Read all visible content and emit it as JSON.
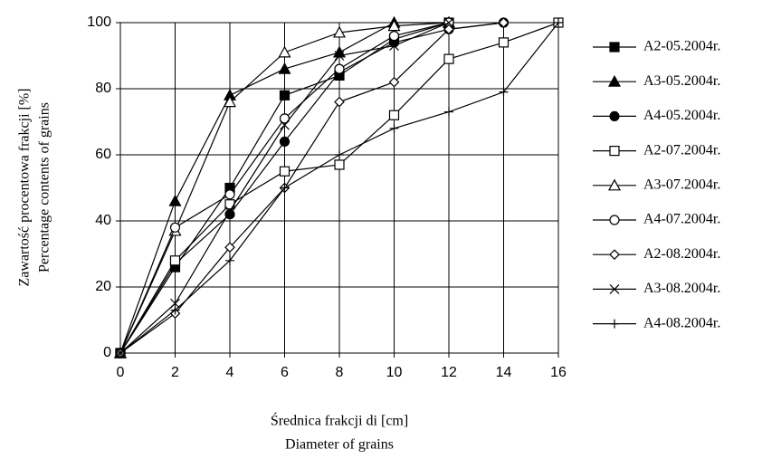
{
  "chart_data": {
    "type": "line",
    "ylabel": [
      "Zawartość procentowa frakcji [%]",
      "Percentage contents of grains"
    ],
    "xlabel": [
      "Średnica frakcji di [cm]",
      "Diameter of grains"
    ],
    "x": [
      0,
      2,
      4,
      6,
      8,
      10,
      12,
      14,
      16
    ],
    "xlim": [
      0,
      16
    ],
    "xticks": [
      0,
      2,
      4,
      6,
      8,
      10,
      12,
      14,
      16
    ],
    "ylim": [
      0,
      100
    ],
    "yticks": [
      0,
      20,
      40,
      60,
      80,
      100
    ],
    "grid": true,
    "legend": "right",
    "series": [
      {
        "name": "A2-05.2004r.",
        "color": "#000000",
        "marker": "square-filled",
        "values": [
          0,
          26,
          50,
          78,
          84,
          95,
          100,
          null,
          null
        ]
      },
      {
        "name": "A3-05.2004r.",
        "color": "#000000",
        "marker": "triangle-filled",
        "values": [
          0,
          46,
          78,
          86,
          91,
          100,
          100,
          null,
          null
        ]
      },
      {
        "name": "A4-05.2004r.",
        "color": "#000000",
        "marker": "circle-filled",
        "values": [
          0,
          27,
          42,
          64,
          85,
          94,
          98,
          100,
          null
        ]
      },
      {
        "name": "A2-07.2004r.",
        "color": "#000000",
        "marker": "square-open",
        "values": [
          0,
          28,
          45,
          55,
          57,
          72,
          89,
          94,
          100
        ]
      },
      {
        "name": "A3-07.2004r.",
        "color": "#000000",
        "marker": "triangle-open",
        "values": [
          0,
          37,
          76,
          91,
          97,
          99,
          100,
          null,
          null
        ]
      },
      {
        "name": "A4-07.2004r.",
        "color": "#000000",
        "marker": "circle-open",
        "values": [
          0,
          38,
          48,
          71,
          86,
          96,
          100,
          null,
          null
        ]
      },
      {
        "name": "A2-08.2004r.",
        "color": "#000000",
        "marker": "diamond-open",
        "values": [
          0,
          12,
          32,
          50,
          76,
          82,
          98,
          100,
          null
        ]
      },
      {
        "name": "A3-08.2004r.",
        "color": "#000000",
        "marker": "x",
        "values": [
          0,
          15,
          43,
          69,
          90,
          93,
          100,
          null,
          null
        ]
      },
      {
        "name": "A4-08.2004r.",
        "color": "#000000",
        "marker": "plus",
        "values": [
          0,
          13,
          28,
          50,
          60,
          68,
          73,
          79,
          100
        ]
      }
    ]
  }
}
